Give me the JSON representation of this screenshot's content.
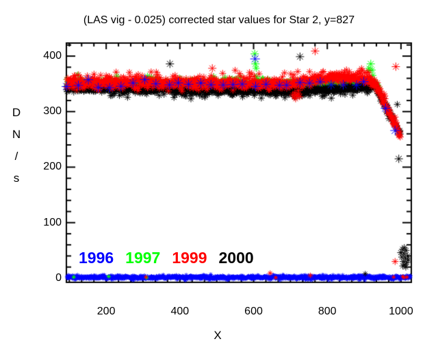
{
  "chart_data": {
    "type": "scatter",
    "title": "(LAS vig - 0.025) corrected star values for Star 2, y=827",
    "xlabel": "X",
    "ylabel": "DN/s",
    "ylabel_chars": [
      "D",
      "N",
      "/",
      "s"
    ],
    "marker": "asterisk",
    "background": "#ffffff",
    "axis_color": "#000000",
    "grid": false,
    "legend_position": "inside-bottom-left",
    "seed": 7,
    "x_axis": {
      "label": "X",
      "range": [
        92,
        1028
      ],
      "ticks": [
        200,
        400,
        600,
        800,
        1000
      ],
      "minor_step": 33.333
    },
    "y_axis": {
      "label": "DN/s",
      "range": [
        -7.5,
        423.5
      ],
      "ticks": [
        0,
        100,
        200,
        300,
        400
      ],
      "minor_step": 20
    },
    "series": [
      {
        "label": "1996",
        "color": "#0000ff",
        "marker_size": 7,
        "band": {
          "draw": 5,
          "x0": 95,
          "x1": 930,
          "step": 30,
          "jitter": 14,
          "sigma": 4,
          "keypoints": [
            [
              95,
              349
            ],
            [
              500,
              350
            ],
            [
              930,
              350
            ]
          ]
        },
        "zero_band": {
          "draw": 4,
          "x0": 94,
          "x1": 1026,
          "step": 0.9,
          "base": 1.5,
          "sigma": 1.8,
          "marker": 3.2
        }
      },
      {
        "label": "1997",
        "color": "#00ff00",
        "marker_size": 5,
        "band": {
          "draw": 1,
          "x0": 93,
          "x1": 940,
          "step": 1.0,
          "sigma": 3.2,
          "keypoints": [
            [
              93,
              349
            ],
            [
              400,
              349.5
            ],
            [
              700,
              350
            ],
            [
              900,
              351.5
            ],
            [
              930,
              350
            ],
            [
              940,
              341
            ]
          ],
          "tail": {
            "prob": 0.05,
            "lo": 4,
            "hi": 12,
            "sign": 1
          }
        }
      },
      {
        "label": "1999",
        "color": "#ff0000",
        "marker_size": 5,
        "band": {
          "draw": 3,
          "x0": 93,
          "x1": 998,
          "step": 1.0,
          "sigma": 5,
          "keypoints": [
            [
              93,
              351
            ],
            [
              300,
              352
            ],
            [
              520,
              350
            ],
            [
              700,
              350
            ],
            [
              760,
              356
            ],
            [
              800,
              360
            ],
            [
              860,
              362
            ],
            [
              905,
              359
            ],
            [
              930,
              350
            ],
            [
              998,
              258
            ]
          ],
          "tail": {
            "prob": 0.09,
            "lo": 5,
            "hi": 15,
            "sign": 1
          }
        }
      },
      {
        "label": "2000",
        "color": "#000000",
        "marker_size": 5,
        "band": {
          "draw": 2,
          "x0": 93,
          "x1": 998,
          "step": 1.0,
          "sigma": 3.2,
          "keypoints": [
            [
              93,
              342
            ],
            [
              300,
              340
            ],
            [
              500,
              338
            ],
            [
              700,
              336.5
            ],
            [
              820,
              340
            ],
            [
              900,
              344
            ],
            [
              930,
              346
            ],
            [
              998,
              262
            ]
          ],
          "tail": {
            "prob": 0.05,
            "lo": 5,
            "hi": 13,
            "sign": -1
          }
        }
      }
    ],
    "outliers": [
      [
        336,
        371,
        "#ff0000",
        5
      ],
      [
        373,
        386,
        "#000000",
        6
      ],
      [
        488,
        378,
        "#ff0000",
        6
      ],
      [
        595,
        368,
        "#ff0000",
        5
      ],
      [
        603,
        404,
        "#00ff00",
        6
      ],
      [
        604,
        395,
        "#0000ff",
        7
      ],
      [
        605,
        386,
        "#00ff00",
        6
      ],
      [
        607,
        378,
        "#00ff00",
        5
      ],
      [
        726,
        399,
        "#000000",
        6
      ],
      [
        767,
        409,
        "#ff0000",
        6
      ],
      [
        706,
        330,
        "#ff0000",
        5
      ],
      [
        710,
        326,
        "#ff0000",
        4
      ],
      [
        714,
        323,
        "#ff0000",
        5
      ],
      [
        718,
        328,
        "#ff0000",
        4
      ],
      [
        722,
        332,
        "#ff0000",
        5
      ],
      [
        716,
        331,
        "#ff0000",
        4
      ],
      [
        711,
        334,
        "#ff0000",
        4
      ],
      [
        725,
        327,
        "#ff0000",
        5
      ],
      [
        913,
        378,
        "#00ff00",
        5
      ],
      [
        918,
        386,
        "#00ff00",
        6
      ],
      [
        922,
        375,
        "#00ff00",
        5
      ],
      [
        958,
        306,
        "#0000ff",
        7
      ],
      [
        984,
        266,
        "#0000ff",
        7
      ],
      [
        990,
        313,
        "#000000",
        5
      ],
      [
        994,
        215,
        "#000000",
        6
      ],
      [
        986,
        381,
        "#ff0000",
        6
      ],
      [
        984,
        30,
        "#ff0000",
        5
      ],
      [
        999,
        46,
        "#000000",
        5
      ],
      [
        1002,
        38,
        "#000000",
        5
      ],
      [
        1004,
        52,
        "#000000",
        5
      ],
      [
        1006,
        30,
        "#000000",
        5
      ],
      [
        1008,
        44,
        "#000000",
        5
      ],
      [
        1010,
        24,
        "#000000",
        5
      ],
      [
        1012,
        36,
        "#000000",
        5
      ],
      [
        1014,
        50,
        "#000000",
        5
      ],
      [
        1016,
        28,
        "#000000",
        5
      ],
      [
        1018,
        40,
        "#000000",
        5
      ],
      [
        1009,
        55,
        "#000000",
        5
      ],
      [
        1013,
        20,
        "#000000",
        5
      ],
      [
        1005,
        22,
        "#000000",
        5
      ],
      [
        1020,
        33,
        "#000000",
        5
      ],
      [
        112,
        2,
        "#00ff00",
        3
      ],
      [
        207,
        3,
        "#00ff00",
        3
      ],
      [
        310,
        1,
        "#00ff00",
        3
      ],
      [
        308,
        2,
        "#ff0000",
        3
      ],
      [
        645,
        9,
        "#ff0000",
        4
      ],
      [
        660,
        1,
        "#ff0000",
        3
      ],
      [
        754,
        5,
        "#ff0000",
        4
      ],
      [
        980,
        2,
        "#ff0000",
        3
      ],
      [
        1005,
        3,
        "#ff0000",
        3
      ],
      [
        1008,
        1,
        "#ff0000",
        3
      ],
      [
        1016,
        2,
        "#ff0000",
        3
      ],
      [
        903,
        8,
        "#000000",
        4
      ]
    ]
  }
}
